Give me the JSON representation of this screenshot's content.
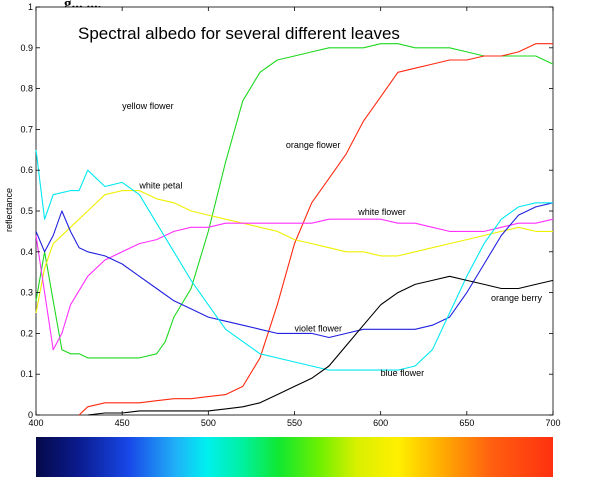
{
  "top_fragment": "g... ...,",
  "chart_data": {
    "type": "line",
    "title": "Spectral albedo for several different leaves",
    "xlabel": "",
    "ylabel": "reflectance",
    "xlim": [
      400,
      700
    ],
    "ylim": [
      0,
      1
    ],
    "x_ticks": [
      400,
      450,
      500,
      550,
      600,
      650,
      700
    ],
    "y_ticks": [
      0,
      0.1,
      0.2,
      0.3,
      0.4,
      0.5,
      0.6,
      0.7,
      0.8,
      0.9,
      1
    ],
    "grid": false,
    "legend": "none",
    "spectrum_bar": true,
    "series": [
      {
        "name": "yellow flower",
        "color": "#1ed81e",
        "label_at": [
          450,
          0.75
        ],
        "points": [
          [
            400,
            0.28
          ],
          [
            405,
            0.4
          ],
          [
            410,
            0.28
          ],
          [
            415,
            0.16
          ],
          [
            420,
            0.15
          ],
          [
            425,
            0.15
          ],
          [
            430,
            0.14
          ],
          [
            440,
            0.14
          ],
          [
            450,
            0.14
          ],
          [
            460,
            0.14
          ],
          [
            470,
            0.15
          ],
          [
            475,
            0.18
          ],
          [
            480,
            0.24
          ],
          [
            490,
            0.31
          ],
          [
            500,
            0.45
          ],
          [
            510,
            0.62
          ],
          [
            520,
            0.77
          ],
          [
            530,
            0.84
          ],
          [
            540,
            0.87
          ],
          [
            550,
            0.88
          ],
          [
            560,
            0.89
          ],
          [
            570,
            0.9
          ],
          [
            580,
            0.9
          ],
          [
            590,
            0.9
          ],
          [
            600,
            0.91
          ],
          [
            610,
            0.91
          ],
          [
            620,
            0.9
          ],
          [
            630,
            0.9
          ],
          [
            640,
            0.9
          ],
          [
            650,
            0.89
          ],
          [
            660,
            0.88
          ],
          [
            670,
            0.88
          ],
          [
            680,
            0.88
          ],
          [
            690,
            0.88
          ],
          [
            700,
            0.86
          ]
        ]
      },
      {
        "name": "orange flower",
        "color": "#ff2a10",
        "label_at": [
          545,
          0.655
        ],
        "points": [
          [
            425,
            0.0
          ],
          [
            430,
            0.02
          ],
          [
            440,
            0.03
          ],
          [
            450,
            0.03
          ],
          [
            460,
            0.03
          ],
          [
            470,
            0.035
          ],
          [
            480,
            0.04
          ],
          [
            490,
            0.04
          ],
          [
            500,
            0.045
          ],
          [
            510,
            0.05
          ],
          [
            520,
            0.07
          ],
          [
            530,
            0.14
          ],
          [
            540,
            0.27
          ],
          [
            550,
            0.42
          ],
          [
            560,
            0.52
          ],
          [
            570,
            0.58
          ],
          [
            580,
            0.64
          ],
          [
            590,
            0.72
          ],
          [
            600,
            0.78
          ],
          [
            610,
            0.84
          ],
          [
            620,
            0.85
          ],
          [
            630,
            0.86
          ],
          [
            640,
            0.87
          ],
          [
            650,
            0.87
          ],
          [
            660,
            0.88
          ],
          [
            670,
            0.88
          ],
          [
            680,
            0.89
          ],
          [
            690,
            0.91
          ],
          [
            700,
            0.91
          ]
        ]
      },
      {
        "name": "white petal",
        "color": "#f0f000",
        "label_at": [
          460,
          0.555
        ],
        "points": [
          [
            400,
            0.25
          ],
          [
            405,
            0.36
          ],
          [
            410,
            0.42
          ],
          [
            420,
            0.46
          ],
          [
            430,
            0.5
          ],
          [
            440,
            0.54
          ],
          [
            450,
            0.55
          ],
          [
            460,
            0.55
          ],
          [
            470,
            0.53
          ],
          [
            480,
            0.52
          ],
          [
            490,
            0.5
          ],
          [
            500,
            0.49
          ],
          [
            510,
            0.48
          ],
          [
            520,
            0.47
          ],
          [
            530,
            0.46
          ],
          [
            540,
            0.45
          ],
          [
            550,
            0.43
          ],
          [
            560,
            0.42
          ],
          [
            570,
            0.41
          ],
          [
            580,
            0.4
          ],
          [
            590,
            0.4
          ],
          [
            600,
            0.39
          ],
          [
            610,
            0.39
          ],
          [
            620,
            0.4
          ],
          [
            630,
            0.41
          ],
          [
            640,
            0.42
          ],
          [
            650,
            0.43
          ],
          [
            660,
            0.44
          ],
          [
            670,
            0.45
          ],
          [
            680,
            0.46
          ],
          [
            690,
            0.45
          ],
          [
            700,
            0.45
          ]
        ]
      },
      {
        "name": "white flower",
        "color": "#ff30ff",
        "label_at": [
          587,
          0.49
        ],
        "points": [
          [
            400,
            0.44
          ],
          [
            405,
            0.3
          ],
          [
            410,
            0.16
          ],
          [
            415,
            0.2
          ],
          [
            420,
            0.27
          ],
          [
            430,
            0.34
          ],
          [
            440,
            0.38
          ],
          [
            450,
            0.4
          ],
          [
            460,
            0.42
          ],
          [
            470,
            0.43
          ],
          [
            480,
            0.45
          ],
          [
            490,
            0.46
          ],
          [
            500,
            0.46
          ],
          [
            510,
            0.47
          ],
          [
            520,
            0.47
          ],
          [
            530,
            0.47
          ],
          [
            540,
            0.47
          ],
          [
            550,
            0.47
          ],
          [
            560,
            0.47
          ],
          [
            570,
            0.48
          ],
          [
            580,
            0.48
          ],
          [
            590,
            0.48
          ],
          [
            600,
            0.48
          ],
          [
            610,
            0.47
          ],
          [
            620,
            0.47
          ],
          [
            630,
            0.46
          ],
          [
            640,
            0.45
          ],
          [
            650,
            0.45
          ],
          [
            660,
            0.45
          ],
          [
            670,
            0.46
          ],
          [
            680,
            0.47
          ],
          [
            690,
            0.47
          ],
          [
            700,
            0.48
          ]
        ]
      },
      {
        "name": "violet flower",
        "color": "#2020e0",
        "label_at": [
          550,
          0.205
        ],
        "points": [
          [
            400,
            0.45
          ],
          [
            405,
            0.4
          ],
          [
            410,
            0.44
          ],
          [
            415,
            0.5
          ],
          [
            420,
            0.45
          ],
          [
            425,
            0.41
          ],
          [
            430,
            0.4
          ],
          [
            440,
            0.39
          ],
          [
            450,
            0.37
          ],
          [
            460,
            0.34
          ],
          [
            470,
            0.31
          ],
          [
            480,
            0.28
          ],
          [
            490,
            0.26
          ],
          [
            500,
            0.24
          ],
          [
            510,
            0.23
          ],
          [
            520,
            0.22
          ],
          [
            530,
            0.21
          ],
          [
            540,
            0.2
          ],
          [
            550,
            0.2
          ],
          [
            560,
            0.2
          ],
          [
            570,
            0.19
          ],
          [
            580,
            0.2
          ],
          [
            590,
            0.21
          ],
          [
            600,
            0.21
          ],
          [
            610,
            0.21
          ],
          [
            620,
            0.21
          ],
          [
            630,
            0.22
          ],
          [
            640,
            0.24
          ],
          [
            650,
            0.3
          ],
          [
            660,
            0.37
          ],
          [
            670,
            0.44
          ],
          [
            680,
            0.49
          ],
          [
            690,
            0.51
          ],
          [
            700,
            0.52
          ]
        ]
      },
      {
        "name": "blue flower",
        "color": "#00e8f0",
        "label_at": [
          600,
          0.095
        ],
        "points": [
          [
            400,
            0.65
          ],
          [
            405,
            0.48
          ],
          [
            410,
            0.54
          ],
          [
            420,
            0.55
          ],
          [
            425,
            0.55
          ],
          [
            430,
            0.6
          ],
          [
            440,
            0.56
          ],
          [
            450,
            0.57
          ],
          [
            460,
            0.54
          ],
          [
            470,
            0.47
          ],
          [
            480,
            0.4
          ],
          [
            490,
            0.33
          ],
          [
            500,
            0.27
          ],
          [
            510,
            0.21
          ],
          [
            520,
            0.18
          ],
          [
            530,
            0.15
          ],
          [
            540,
            0.14
          ],
          [
            550,
            0.13
          ],
          [
            560,
            0.12
          ],
          [
            570,
            0.11
          ],
          [
            580,
            0.11
          ],
          [
            590,
            0.11
          ],
          [
            600,
            0.11
          ],
          [
            610,
            0.11
          ],
          [
            620,
            0.12
          ],
          [
            630,
            0.16
          ],
          [
            640,
            0.25
          ],
          [
            650,
            0.34
          ],
          [
            660,
            0.42
          ],
          [
            670,
            0.48
          ],
          [
            680,
            0.51
          ],
          [
            690,
            0.52
          ],
          [
            700,
            0.52
          ]
        ]
      },
      {
        "name": "orange berry",
        "color": "#000000",
        "label_at": [
          664,
          0.28
        ],
        "points": [
          [
            430,
            0.0
          ],
          [
            440,
            0.005
          ],
          [
            450,
            0.005
          ],
          [
            460,
            0.01
          ],
          [
            470,
            0.01
          ],
          [
            480,
            0.01
          ],
          [
            490,
            0.01
          ],
          [
            500,
            0.01
          ],
          [
            510,
            0.015
          ],
          [
            520,
            0.02
          ],
          [
            530,
            0.03
          ],
          [
            540,
            0.05
          ],
          [
            550,
            0.07
          ],
          [
            560,
            0.09
          ],
          [
            570,
            0.12
          ],
          [
            580,
            0.17
          ],
          [
            590,
            0.22
          ],
          [
            600,
            0.27
          ],
          [
            610,
            0.3
          ],
          [
            620,
            0.32
          ],
          [
            630,
            0.33
          ],
          [
            640,
            0.34
          ],
          [
            650,
            0.33
          ],
          [
            660,
            0.32
          ],
          [
            670,
            0.31
          ],
          [
            680,
            0.31
          ],
          [
            690,
            0.32
          ],
          [
            700,
            0.33
          ]
        ]
      }
    ]
  }
}
